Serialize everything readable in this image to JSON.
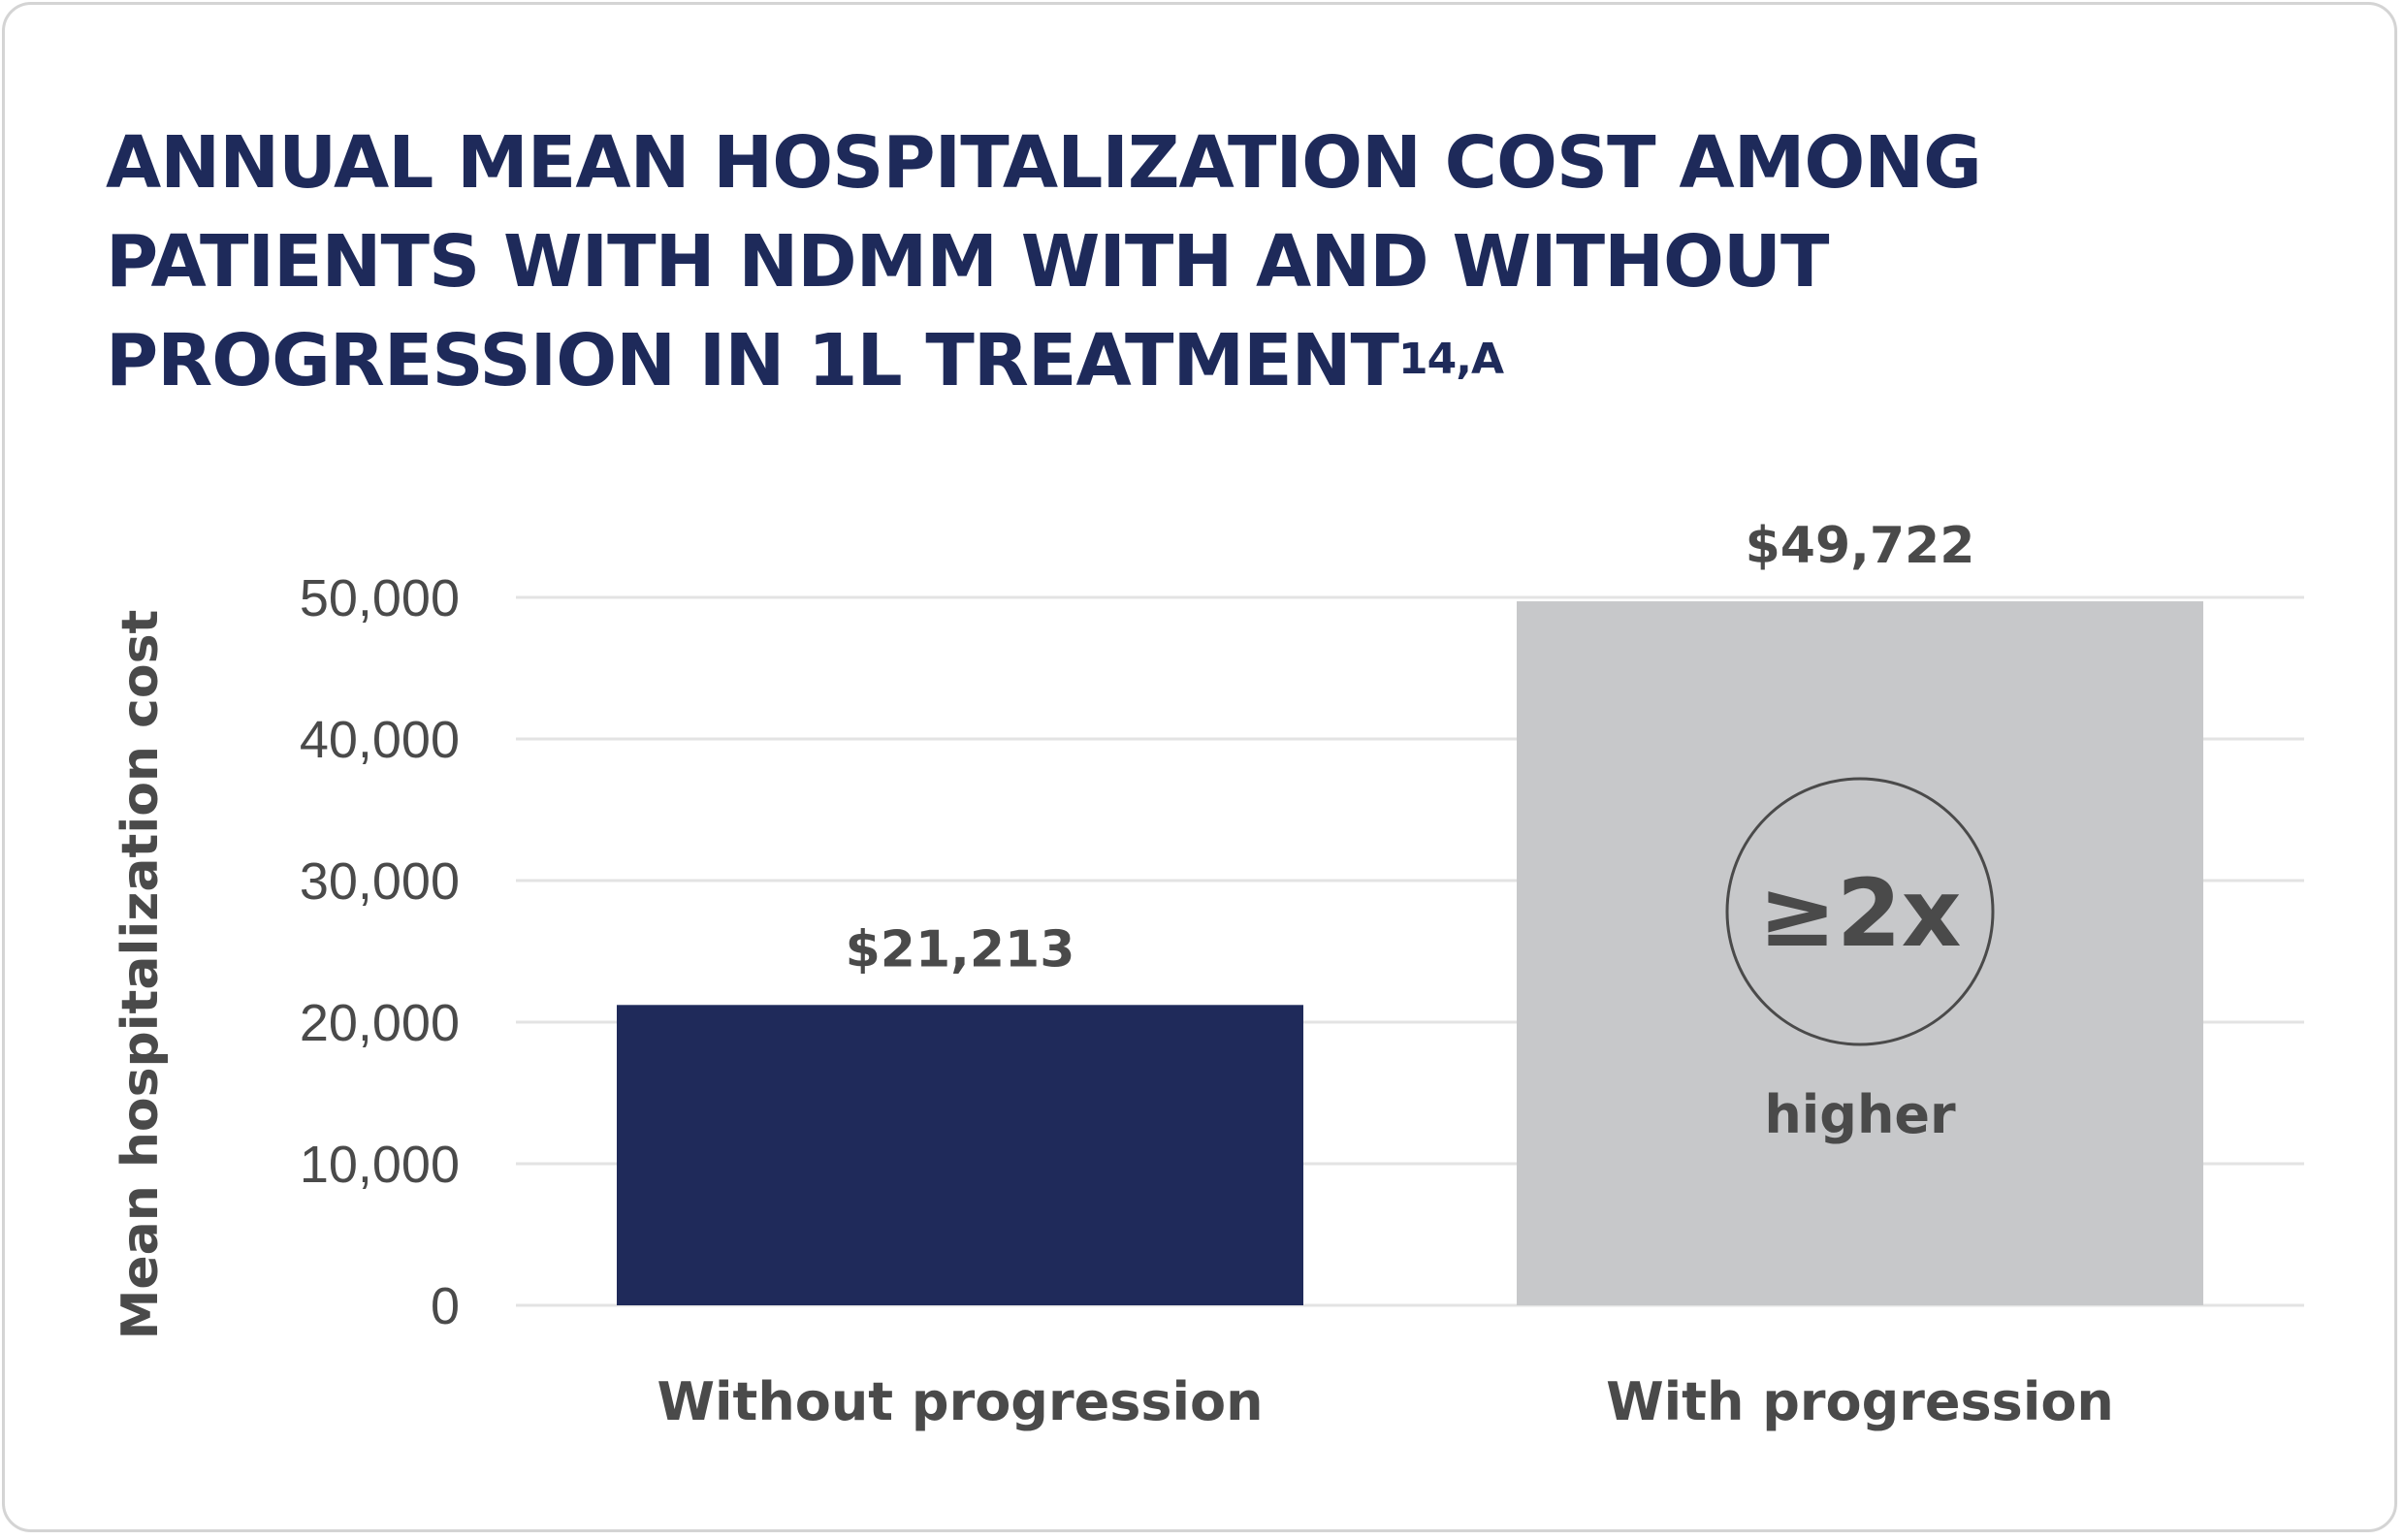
{
  "title": {
    "text": "ANNUAL MEAN HOSPITALIZATION COST AMONG PATIENTS WITH NDMM WITH AND WITHOUT PROGRESSION IN 1L TREATMENT",
    "superscript": "14,a"
  },
  "chart_data": {
    "type": "bar",
    "categories": [
      "Without progression",
      "With progression"
    ],
    "values": [
      21213,
      49722
    ],
    "value_labels": [
      "$21,213",
      "$49,722"
    ],
    "ylabel": "Mean hospitalization cost",
    "xlabel": "",
    "ylim": [
      0,
      50000
    ],
    "yticks": [
      0,
      10000,
      20000,
      30000,
      40000,
      50000
    ],
    "ytick_labels": [
      "0",
      "10,000",
      "20,000",
      "30,000",
      "40,000",
      "50,000"
    ],
    "grid": true,
    "bar_colors": [
      "#1f2a5a",
      "#c7c8ca"
    ],
    "callout": {
      "text": "≥2x",
      "subtext": "higher"
    }
  },
  "colors": {
    "title": "#1e2a5a",
    "text": "#4a4a4a",
    "grid": "#e3e3e3"
  }
}
